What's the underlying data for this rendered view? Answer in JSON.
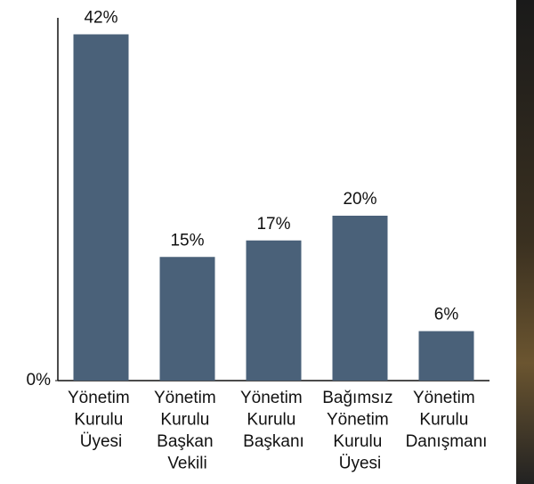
{
  "chart_data": {
    "type": "bar",
    "categories": [
      "Yönetim Kurulu Üyesi",
      "Yönetim Kurulu Başkan Vekili",
      "Yönetim Kurulu Başkanı",
      "Bağımsız Yönetim Kurulu Üyesi",
      "Yönetim Kurulu Danışmanı"
    ],
    "values": [
      42,
      15,
      17,
      20,
      6
    ],
    "value_labels": [
      "42%",
      "15%",
      "17%",
      "20%",
      "6%"
    ],
    "color": "#4a6179",
    "ylim": [
      0,
      44
    ],
    "yticks": [
      {
        "value": 0,
        "label": "0%"
      }
    ]
  }
}
